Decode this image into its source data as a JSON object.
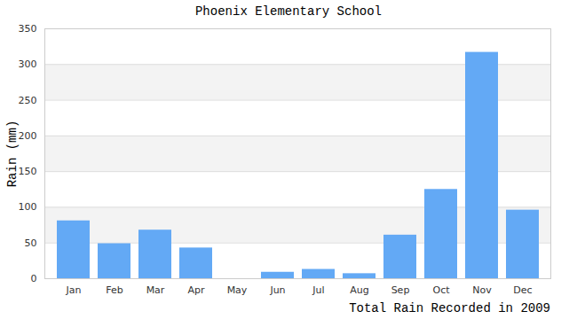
{
  "chart_data": {
    "type": "bar",
    "title": "Phoenix Elementary School",
    "caption": "Total Rain Recorded in 2009",
    "y_label": "Rain (mm)",
    "categories": [
      "Jan",
      "Feb",
      "Mar",
      "Apr",
      "May",
      "Jun",
      "Jul",
      "Aug",
      "Sep",
      "Oct",
      "Nov",
      "Dec"
    ],
    "values": [
      81,
      49,
      68,
      43,
      0,
      9,
      13,
      7,
      61,
      125,
      317,
      96
    ],
    "color": "#63a9f5",
    "ylim": [
      0,
      350
    ],
    "yticks": [
      0,
      50,
      100,
      150,
      200,
      250,
      300,
      350
    ],
    "grid": true
  }
}
